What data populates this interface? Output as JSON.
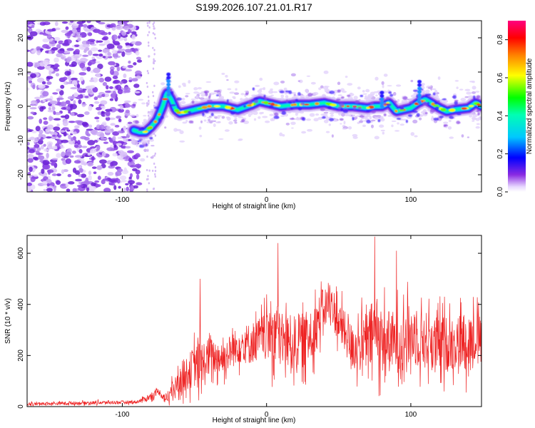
{
  "figure_title": "S199.2026.107.21.01.R17",
  "colors": {
    "snr_line": "#ee2222",
    "speckle": "#7a2ee0",
    "axis": "#000000"
  },
  "chart_data": [
    {
      "type": "heatmap",
      "name": "spectrogram",
      "xlabel": "Height of straight line (km)",
      "ylabel": "Frequency (Hz)",
      "xlim": [
        -166,
        149
      ],
      "ylim": [
        -25,
        25
      ],
      "xticks": [
        -100,
        0,
        100
      ],
      "yticks": [
        -20,
        -10,
        0,
        10,
        20
      ],
      "colorbar": {
        "label": "Normalized spectral amplitude",
        "range": [
          0,
          0.9
        ],
        "ticks": [
          0.0,
          0.2,
          0.4,
          0.6,
          0.8
        ],
        "colormap": "rainbow"
      },
      "ridge": {
        "x": [
          -92,
          -88,
          -84,
          -80,
          -76,
          -72,
          -69,
          -66,
          -63,
          -60,
          -50,
          -40,
          -30,
          -20,
          -10,
          -5,
          0,
          10,
          20,
          30,
          40,
          50,
          60,
          70,
          75,
          80,
          85,
          90,
          100,
          105,
          110,
          120,
          125,
          130,
          140,
          145,
          149
        ],
        "y": [
          -7,
          -7.5,
          -7.5,
          -6,
          -4,
          0,
          4,
          2,
          -1,
          -2,
          -1,
          0,
          0,
          -1,
          0.5,
          1.5,
          1,
          0,
          0.5,
          0.5,
          1,
          0,
          0,
          -0.5,
          0,
          0,
          1,
          -1.5,
          -0.5,
          1,
          2,
          -0.5,
          -1.5,
          -1,
          -0.5,
          1,
          0
        ]
      },
      "noise_region_x": [
        -166,
        -92
      ]
    },
    {
      "type": "line",
      "name": "snr",
      "xlabel": "Height of straight line (km)",
      "ylabel": "SNR (10 * v/v)",
      "xlim": [
        -166,
        149
      ],
      "ylim": [
        0,
        670
      ],
      "xticks": [
        -100,
        0,
        100
      ],
      "yticks": [
        0,
        200,
        400,
        600
      ],
      "envelope": {
        "x": [
          -166,
          -120,
          -90,
          -80,
          -75,
          -70,
          -60,
          -50,
          -45,
          -40,
          -30,
          -20,
          -10,
          0,
          5,
          10,
          20,
          30,
          40,
          45,
          50,
          60,
          70,
          75,
          80,
          90,
          100,
          110,
          120,
          130,
          140,
          149
        ],
        "base": [
          10,
          15,
          18,
          40,
          60,
          30,
          100,
          160,
          150,
          200,
          190,
          240,
          250,
          280,
          300,
          260,
          250,
          270,
          390,
          400,
          330,
          230,
          250,
          300,
          260,
          250,
          280,
          260,
          240,
          250,
          260,
          280
        ],
        "amp": [
          10,
          12,
          12,
          25,
          20,
          40,
          90,
          150,
          200,
          130,
          120,
          130,
          150,
          160,
          260,
          200,
          190,
          200,
          140,
          150,
          150,
          160,
          220,
          260,
          230,
          220,
          220,
          210,
          200,
          200,
          210,
          150
        ]
      },
      "notable_peaks": [
        {
          "x": -46,
          "y": 500
        },
        {
          "x": 8,
          "y": 640
        },
        {
          "x": 75,
          "y": 665
        },
        {
          "x": 90,
          "y": 610
        }
      ]
    }
  ]
}
